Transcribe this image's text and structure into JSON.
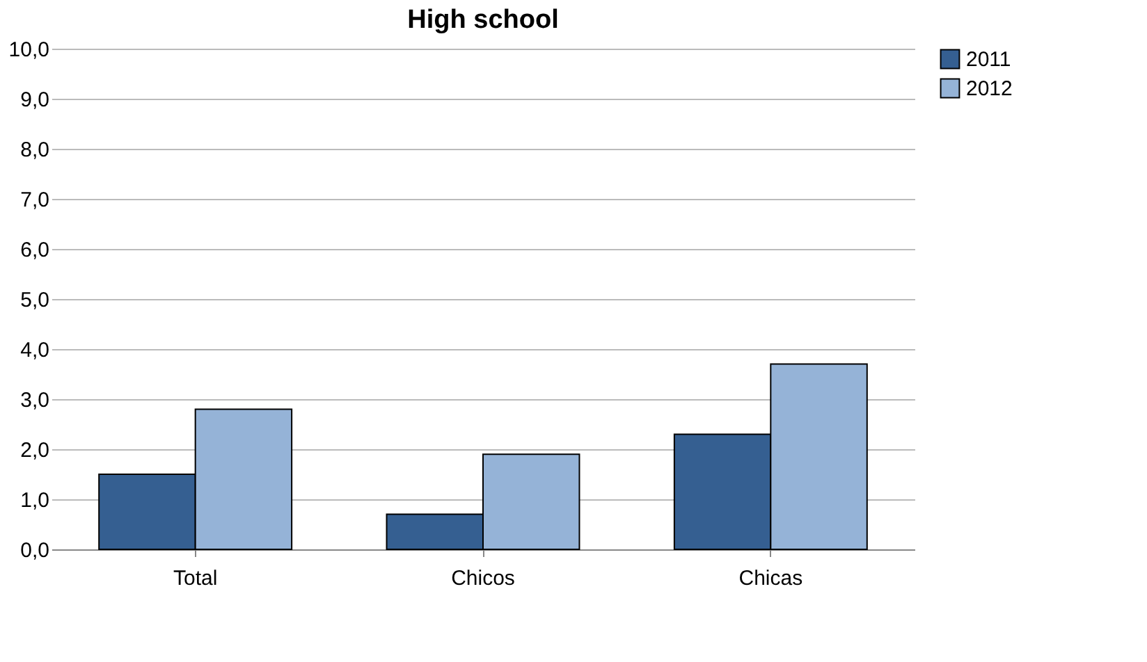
{
  "chart_data": {
    "type": "bar",
    "title": "High school",
    "categories": [
      "Total",
      "Chicos",
      "Chicas"
    ],
    "series": [
      {
        "name": "2011",
        "color": "#355f91",
        "values": [
          1.5,
          0.7,
          2.3
        ]
      },
      {
        "name": "2012",
        "color": "#95b3d7",
        "values": [
          2.8,
          1.9,
          3.7
        ]
      }
    ],
    "ylim": [
      0,
      10
    ],
    "yticks": [
      {
        "value": 0,
        "label": "0,0"
      },
      {
        "value": 1,
        "label": "1,0"
      },
      {
        "value": 2,
        "label": "2,0"
      },
      {
        "value": 3,
        "label": "3,0"
      },
      {
        "value": 4,
        "label": "4,0"
      },
      {
        "value": 5,
        "label": "5,0"
      },
      {
        "value": 6,
        "label": "6,0"
      },
      {
        "value": 7,
        "label": "7,0"
      },
      {
        "value": 8,
        "label": "8,0"
      },
      {
        "value": 9,
        "label": "9,0"
      },
      {
        "value": 10,
        "label": "10,0"
      }
    ],
    "grid": "y",
    "legend": "right"
  }
}
